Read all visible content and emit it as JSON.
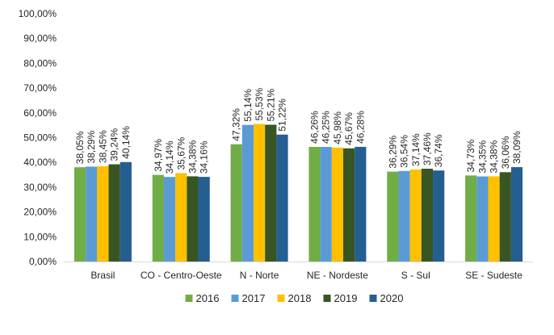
{
  "chart_data": {
    "type": "bar",
    "categories": [
      "Brasil",
      "CO - Centro-Oeste",
      "N - Norte",
      "NE - Nordeste",
      "S - Sul",
      "SE - Sudeste"
    ],
    "series": [
      {
        "name": "2016",
        "color": "#70ad47",
        "values": [
          38.05,
          34.97,
          47.32,
          46.26,
          36.29,
          34.73
        ],
        "labels": [
          "38,05%",
          "34,97%",
          "47,32%",
          "46,26%",
          "36,29%",
          "34,73%"
        ]
      },
      {
        "name": "2017",
        "color": "#5b9bd5",
        "values": [
          38.29,
          34.14,
          55.14,
          46.25,
          36.54,
          34.35
        ],
        "labels": [
          "38,29%",
          "34,14%",
          "55,14%",
          "46,25%",
          "36,54%",
          "34,35%"
        ]
      },
      {
        "name": "2018",
        "color": "#ffc000",
        "values": [
          38.45,
          35.67,
          55.53,
          45.98,
          37.14,
          34.38
        ],
        "labels": [
          "38,45%",
          "35,67%",
          "55,53%",
          "45,98%",
          "37,14%",
          "34,38%"
        ]
      },
      {
        "name": "2019",
        "color": "#375623",
        "values": [
          39.24,
          34.38,
          55.21,
          45.67,
          37.46,
          36.06
        ],
        "labels": [
          "39,24%",
          "34,38%",
          "55,21%",
          "45,67%",
          "37,46%",
          "36,06%"
        ]
      },
      {
        "name": "2020",
        "color": "#255e91",
        "values": [
          40.14,
          34.16,
          51.22,
          46.28,
          36.74,
          38.09
        ],
        "labels": [
          "40,14%",
          "34,16%",
          "51,22%",
          "46,28%",
          "36,74%",
          "38,09%"
        ]
      }
    ],
    "yticks": [
      "0,00%",
      "10,00%",
      "20,00%",
      "30,00%",
      "40,00%",
      "50,00%",
      "60,00%",
      "70,00%",
      "80,00%",
      "90,00%",
      "100,00%"
    ],
    "ylim": [
      0,
      100
    ],
    "grid": false,
    "legend_position": "bottom"
  }
}
